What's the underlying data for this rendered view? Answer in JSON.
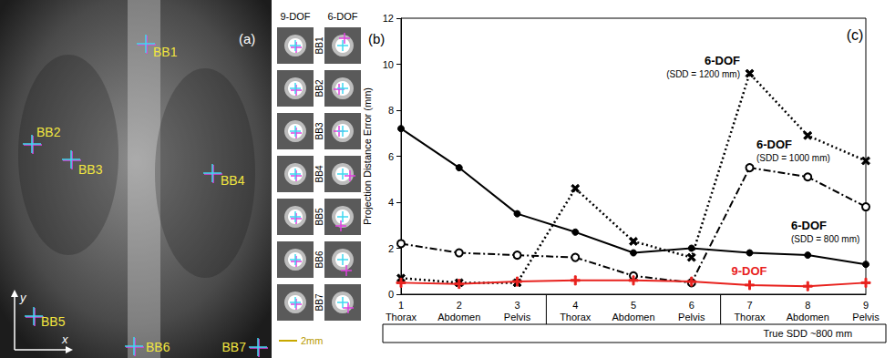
{
  "chart_data": {
    "type": "line",
    "title": "(c)",
    "y_label": "Projection Distance Error (mm)",
    "x_label": "True SDD ~800 mm",
    "categories": [
      "1\nThorax",
      "2\nAbdomen",
      "3\nPelvis",
      "4\nThorax",
      "5\nAbdomen",
      "6\nPelvis",
      "7\nThorax",
      "8\nAbdomen",
      "9\nPelvis"
    ],
    "ylim": [
      0,
      12
    ],
    "yticks": [
      0,
      2,
      4,
      6,
      8,
      10,
      12
    ],
    "grid": false,
    "series": [
      {
        "name": "6-DOF (SDD = 800 mm)",
        "color": "#000000",
        "line_style": "solid",
        "marker": "circle",
        "values": [
          7.2,
          5.5,
          3.5,
          2.7,
          1.8,
          2.0,
          1.8,
          1.7,
          1.3
        ]
      },
      {
        "name": "6-DOF (SDD = 1000 mm)",
        "color": "#000000",
        "line_style": "dashdot",
        "marker": "open_circle",
        "values": [
          2.2,
          1.8,
          1.7,
          1.6,
          0.8,
          0.5,
          5.5,
          5.1,
          3.8
        ]
      },
      {
        "name": "6-DOF (SDD = 1200 mm)",
        "color": "#000000",
        "line_style": "dotted",
        "marker": "x",
        "values": [
          0.7,
          0.5,
          0.5,
          4.6,
          2.3,
          1.6,
          9.6,
          6.9,
          5.8
        ]
      },
      {
        "name": "9-DOF",
        "color": "#e8221e",
        "line_style": "solid",
        "marker": "plus",
        "values": [
          0.5,
          0.45,
          0.55,
          0.6,
          0.6,
          0.55,
          0.4,
          0.35,
          0.5
        ]
      }
    ]
  },
  "panels": {
    "a": {
      "label": "(a)",
      "markers": [
        "BB1",
        "BB2",
        "BB3",
        "BB4",
        "BB5",
        "BB6",
        "BB7"
      ],
      "axes": [
        "x",
        "y"
      ]
    },
    "b": {
      "label": "(b)",
      "columns": [
        "9-DOF",
        "6-DOF"
      ],
      "rows": [
        "BB1",
        "BB2",
        "BB3",
        "BB4",
        "BB5",
        "BB6",
        "BB7"
      ],
      "scale_bar": "2mm"
    }
  }
}
